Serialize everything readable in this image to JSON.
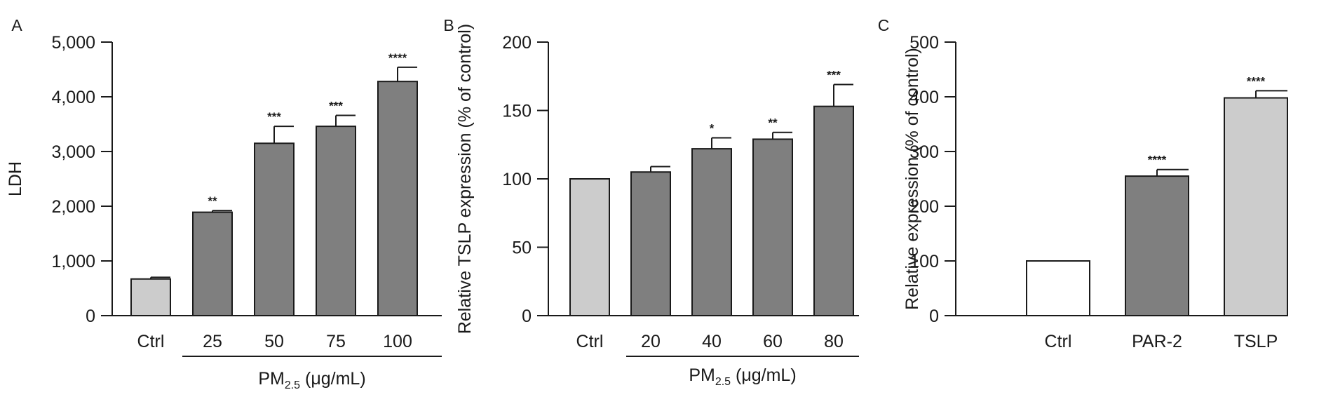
{
  "chart_data": [
    {
      "type": "bar",
      "panel_label": "A",
      "title": "",
      "xlabel": "",
      "ylabel": "LDH",
      "categories": [
        "Ctrl",
        "25",
        "50",
        "75",
        "100"
      ],
      "values": [
        670,
        1890,
        3150,
        3460,
        4280
      ],
      "errors": [
        30,
        30,
        310,
        200,
        260
      ],
      "significance": [
        "",
        "**",
        "***",
        "***",
        "****"
      ],
      "bar_colors": [
        "#cccccc",
        "#7f7f7f",
        "#7f7f7f",
        "#7f7f7f",
        "#7f7f7f"
      ],
      "ylim": [
        0,
        5000
      ],
      "yticks": [
        "0",
        "1,000",
        "2,000",
        "3,000",
        "4,000",
        "5,000"
      ],
      "group_label": {
        "main": "PM",
        "subscript": "2.5",
        "suffix": " (μg/mL)"
      },
      "grid": false
    },
    {
      "type": "bar",
      "panel_label": "B",
      "title": "",
      "xlabel": "",
      "ylabel": "Relative TSLP expression (% of control)",
      "categories": [
        "Ctrl",
        "20",
        "40",
        "60",
        "80"
      ],
      "values": [
        100,
        105,
        122,
        129,
        153
      ],
      "errors": [
        0,
        4,
        8,
        5,
        16
      ],
      "significance": [
        "",
        "",
        "*",
        "**",
        "***"
      ],
      "bar_colors": [
        "#cccccc",
        "#7f7f7f",
        "#7f7f7f",
        "#7f7f7f",
        "#7f7f7f"
      ],
      "ylim": [
        0,
        200
      ],
      "yticks": [
        "0",
        "50",
        "100",
        "150",
        "200"
      ],
      "group_label": {
        "main": "PM",
        "subscript": "2.5",
        "suffix": " (μg/mL)"
      },
      "grid": false
    },
    {
      "type": "bar",
      "panel_label": "C",
      "title": "",
      "xlabel": "",
      "ylabel": "Relative expression (% of control)",
      "categories": [
        "Ctrl",
        "PAR-2",
        "TSLP"
      ],
      "values": [
        100,
        255,
        398
      ],
      "errors": [
        0,
        12,
        13
      ],
      "significance": [
        "",
        "****",
        "****"
      ],
      "bar_colors": [
        "#ffffff",
        "#7f7f7f",
        "#cccccc"
      ],
      "ylim": [
        0,
        500
      ],
      "yticks": [
        "0",
        "100",
        "200",
        "300",
        "400",
        "500"
      ],
      "grid": false
    }
  ]
}
